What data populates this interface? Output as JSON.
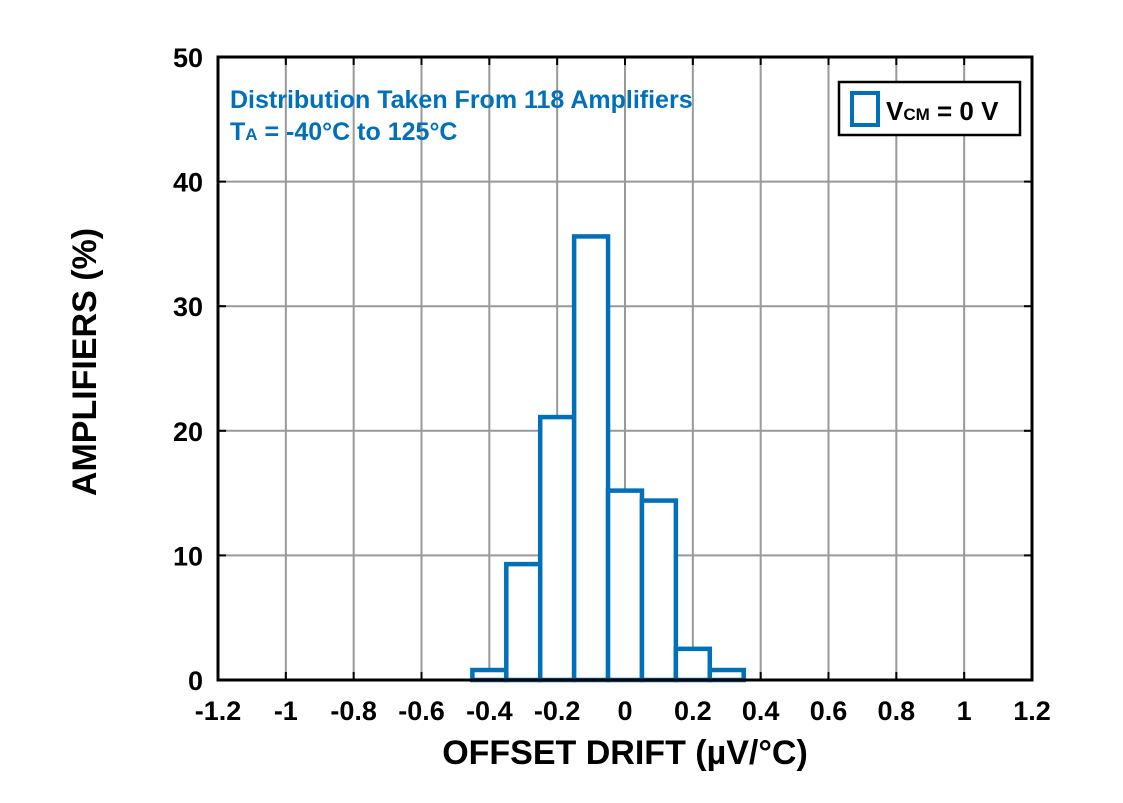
{
  "chart_data": {
    "type": "bar",
    "title": "",
    "xlabel": "OFFSET DRIFT (µV/°C)",
    "ylabel": "AMPLIFIERS (%)",
    "xlim": [
      -1.2,
      1.2
    ],
    "ylim": [
      0,
      50
    ],
    "x_ticks": [
      -1.2,
      -1,
      -0.8,
      -0.6,
      -0.4,
      -0.2,
      0,
      0.2,
      0.4,
      0.6,
      0.8,
      1,
      1.2
    ],
    "x_tick_labels": [
      "-1.2",
      "-1",
      "-0.8",
      "-0.6",
      "-0.4",
      "-0.2",
      "0",
      "0.2",
      "0.4",
      "0.6",
      "0.8",
      "1",
      "1.2"
    ],
    "y_ticks": [
      0,
      10,
      20,
      30,
      40,
      50
    ],
    "y_tick_labels": [
      "0",
      "10",
      "20",
      "30",
      "40",
      "50"
    ],
    "grid": true,
    "bin_width": 0.1,
    "bins": [
      {
        "start": -0.45,
        "end": -0.35,
        "value": 0.8
      },
      {
        "start": -0.35,
        "end": -0.25,
        "value": 9.3
      },
      {
        "start": -0.25,
        "end": -0.15,
        "value": 21.1
      },
      {
        "start": -0.15,
        "end": -0.05,
        "value": 35.6
      },
      {
        "start": -0.05,
        "end": 0.05,
        "value": 15.2
      },
      {
        "start": 0.05,
        "end": 0.15,
        "value": 14.4
      },
      {
        "start": 0.15,
        "end": 0.25,
        "value": 2.5
      },
      {
        "start": 0.25,
        "end": 0.35,
        "value": 0.8
      }
    ],
    "series_color": "#0070b8",
    "annotation": {
      "line1": "Distribution Taken From 118 Amplifiers",
      "line2_main": "T",
      "line2_sub": "A",
      "line2_rest": " = -40°C to 125°C",
      "color": "#0070b8"
    },
    "legend": {
      "placement": "top-right",
      "main": "V",
      "sub": "CM",
      "rest": " = 0 V"
    }
  }
}
